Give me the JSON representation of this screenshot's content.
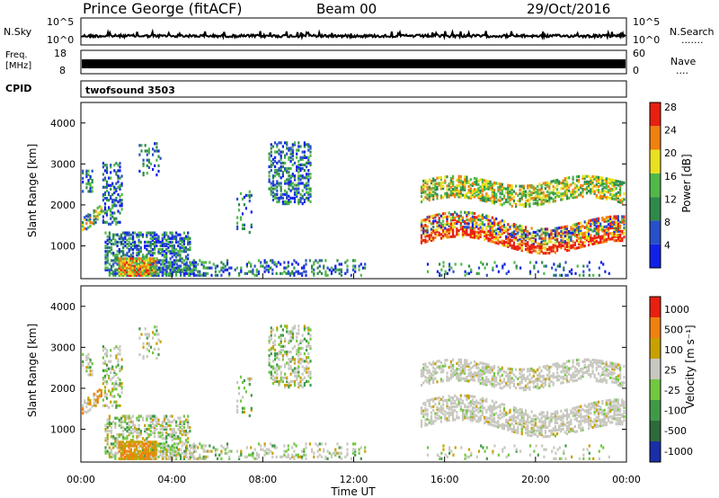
{
  "header": {
    "station": "Prince George (fitACF)",
    "beam": "Beam 00",
    "date": "29/Oct/2016"
  },
  "panels": {
    "nsky": {
      "label": "N.Sky",
      "tick_top": "10^5",
      "tick_bot": "10^0",
      "right_label": "N.Search",
      "right_dots": "......."
    },
    "freq": {
      "label_top": "Freq.",
      "label_bot": "[MHz]",
      "tick_top": "18",
      "tick_bot": "8",
      "right_tick_top": "60",
      "right_tick_bot": "0",
      "right_label": "Nave",
      "right_dots": "...."
    },
    "cpid": {
      "label": "CPID",
      "mode": "twofsound 3503"
    }
  },
  "chart_data": [
    {
      "type": "heatmap",
      "name": "power",
      "ylabel": "Slant Range [km]",
      "ylim": [
        200,
        4500
      ],
      "yticks": [
        "1000",
        "2000",
        "3000",
        "4000"
      ],
      "colorbar": {
        "label": "Power [dB]",
        "ticks": [
          "4",
          "8",
          "12",
          "16",
          "20",
          "24",
          "28"
        ],
        "colors": [
          "#1020e8",
          "#2850c8",
          "#2e8a4a",
          "#4fb848",
          "#e8e020",
          "#f08010",
          "#e82010"
        ]
      }
    },
    {
      "type": "heatmap",
      "name": "velocity",
      "ylabel": "Slant Range [km]",
      "ylim": [
        200,
        4500
      ],
      "yticks": [
        "1000",
        "2000",
        "3000",
        "4000"
      ],
      "xlabel": "Time UT",
      "xticks": [
        "00:00",
        "04:00",
        "08:00",
        "12:00",
        "16:00",
        "20:00",
        "00:00"
      ],
      "colorbar": {
        "label": "Velocity [m s⁻¹]",
        "ticks": [
          "1000",
          "500",
          "100",
          "25",
          "-25",
          "-100",
          "-500",
          "-1000"
        ],
        "colors": [
          "#1a2ea8",
          "#2e6a3a",
          "#3f9a48",
          "#72c840",
          "#c8c8c0",
          "#c8a000",
          "#f08010",
          "#e82010"
        ]
      }
    }
  ]
}
